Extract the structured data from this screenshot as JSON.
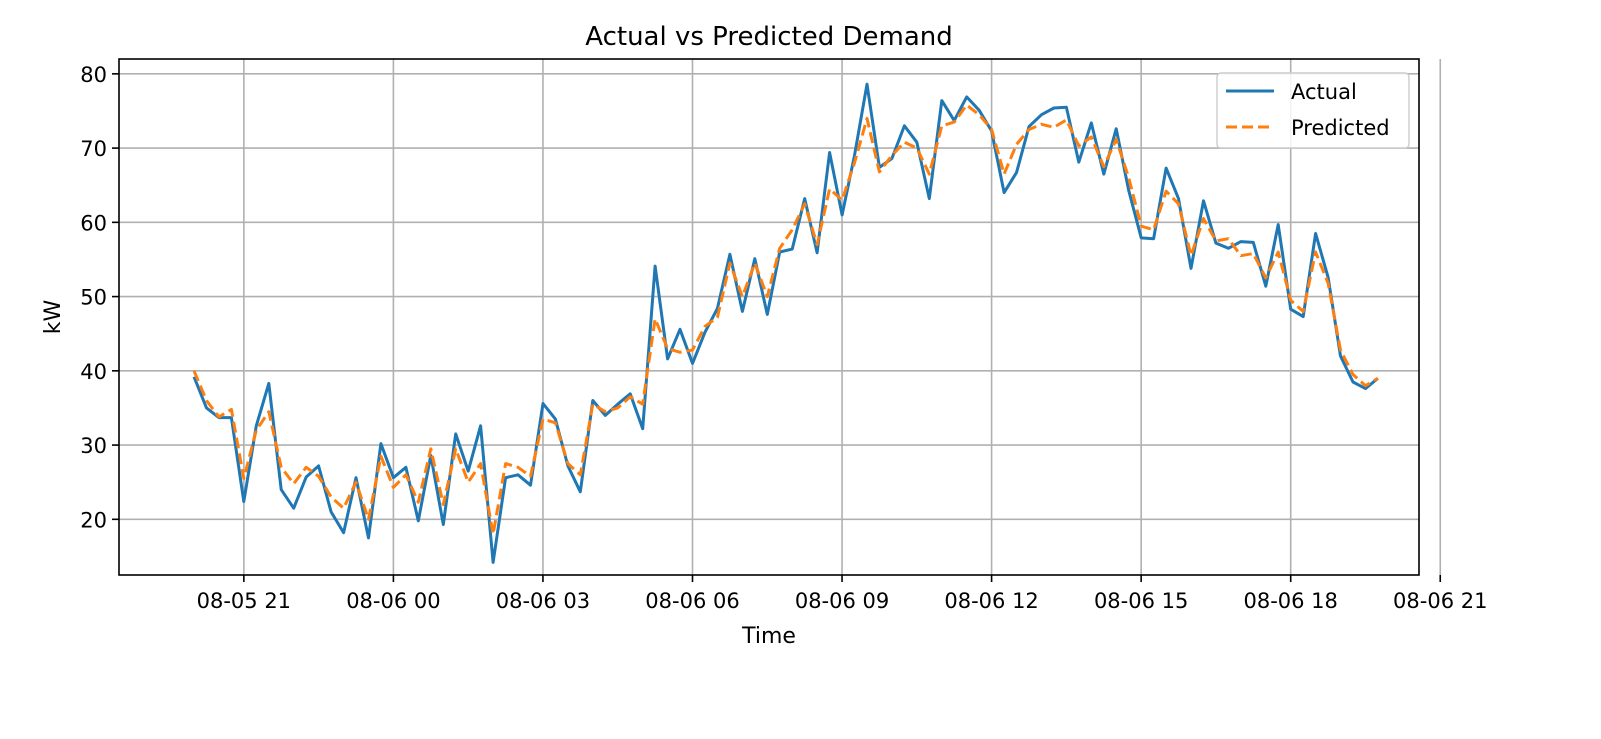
{
  "chart_data": {
    "type": "line",
    "title": "Actual vs Predicted Demand",
    "xlabel": "Time",
    "ylabel": "kW",
    "x_start": "08-05 20:00",
    "x_step_minutes": 15,
    "x_ticks": [
      "08-05 21",
      "08-06 00",
      "08-06 03",
      "08-06 06",
      "08-06 09",
      "08-06 12",
      "08-06 15",
      "08-06 18",
      "08-06 21"
    ],
    "y_ticks": [
      20,
      30,
      40,
      50,
      60,
      70,
      80
    ],
    "ylim": [
      12.5,
      82
    ],
    "grid": true,
    "legend_position": "top-right",
    "series": [
      {
        "name": "Actual",
        "color": "#1f77b4",
        "style": "solid",
        "values": [
          39.2,
          35.0,
          33.7,
          33.7,
          22.4,
          32.6,
          38.3,
          24.0,
          21.5,
          25.7,
          27.2,
          21.0,
          18.2,
          25.6,
          17.5,
          30.2,
          25.6,
          27.0,
          19.8,
          28.6,
          19.3,
          31.5,
          26.5,
          32.6,
          14.2,
          25.6,
          26.0,
          24.6,
          35.6,
          33.5,
          27.2,
          23.7,
          36.0,
          34.0,
          35.5,
          36.9,
          32.2,
          54.1,
          41.6,
          45.6,
          41.0,
          45.2,
          48.4,
          55.7,
          48.0,
          55.1,
          47.6,
          56.0,
          56.4,
          63.2,
          55.9,
          69.4,
          61.0,
          69.0,
          78.6,
          67.4,
          68.6,
          73.0,
          70.8,
          63.2,
          76.4,
          73.7,
          76.9,
          75.1,
          72.3,
          64.0,
          66.7,
          72.9,
          74.5,
          75.4,
          75.5,
          68.1,
          73.4,
          66.5,
          72.6,
          64.3,
          57.9,
          57.8,
          67.3,
          63.2,
          53.8,
          62.9,
          57.2,
          56.5,
          57.4,
          57.3,
          51.4,
          59.7,
          48.3,
          47.3,
          58.5,
          52.6,
          42.0,
          38.5,
          37.6,
          39.0
        ]
      },
      {
        "name": "Predicted",
        "color": "#ff7f0e",
        "style": "dashed",
        "values": [
          40.0,
          36.0,
          33.8,
          34.8,
          25.5,
          32.0,
          34.5,
          27.0,
          24.8,
          27.0,
          25.8,
          23.0,
          21.5,
          25.0,
          20.0,
          28.5,
          24.3,
          26.0,
          22.3,
          29.5,
          22.0,
          29.5,
          25.0,
          27.5,
          18.0,
          27.5,
          27.0,
          25.8,
          33.5,
          33.0,
          27.5,
          26.0,
          35.5,
          34.5,
          35.0,
          36.5,
          35.5,
          47.0,
          43.0,
          42.5,
          42.8,
          46.0,
          47.2,
          54.5,
          50.0,
          54.5,
          50.0,
          56.5,
          59.0,
          62.5,
          57.0,
          64.5,
          63.0,
          68.0,
          74.0,
          66.8,
          69.0,
          70.8,
          70.0,
          66.5,
          73.0,
          73.5,
          75.8,
          74.5,
          72.5,
          66.5,
          70.5,
          72.5,
          73.2,
          72.8,
          73.8,
          70.3,
          71.5,
          67.5,
          71.2,
          66.0,
          59.5,
          59.0,
          64.2,
          62.5,
          55.5,
          60.5,
          57.5,
          57.8,
          55.5,
          55.8,
          52.5,
          56.0,
          49.5,
          48.0,
          56.0,
          51.8,
          42.8,
          39.5,
          38.0,
          39.0
        ]
      }
    ]
  }
}
